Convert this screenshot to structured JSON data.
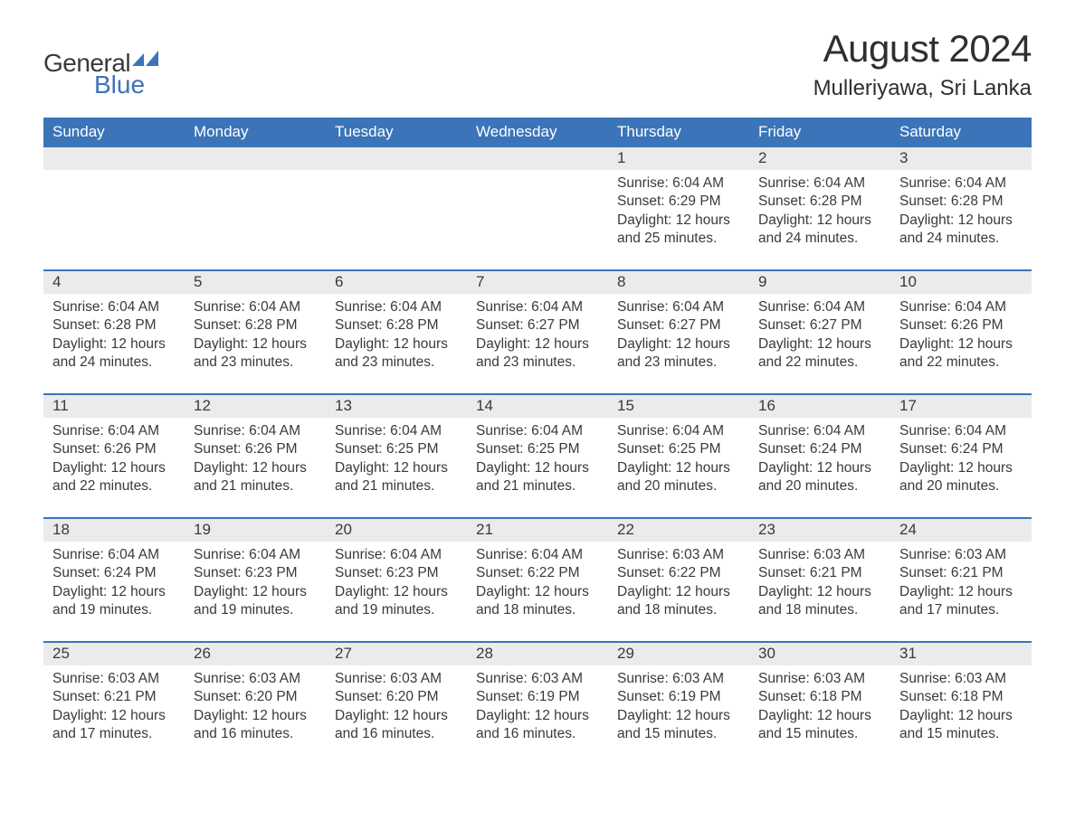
{
  "colors": {
    "header_bg": "#3b74b9",
    "header_text": "#ffffff",
    "daynum_bg": "#ebebeb",
    "body_text": "#3a3a3a",
    "week_border": "#3b74b9",
    "logo_blue": "#3b74b9",
    "page_bg": "#ffffff"
  },
  "fonts": {
    "title_size_pt": 32,
    "location_size_pt": 18,
    "header_size_pt": 13,
    "body_size_pt": 12,
    "family": "Arial"
  },
  "logo": {
    "line1": "General",
    "line2": "Blue"
  },
  "title": "August 2024",
  "location": "Mulleriyawa, Sri Lanka",
  "day_headers": [
    "Sunday",
    "Monday",
    "Tuesday",
    "Wednesday",
    "Thursday",
    "Friday",
    "Saturday"
  ],
  "weeks": [
    {
      "nums": [
        "",
        "",
        "",
        "",
        "1",
        "2",
        "3"
      ],
      "cells": [
        null,
        null,
        null,
        null,
        {
          "sunrise": "Sunrise: 6:04 AM",
          "sunset": "Sunset: 6:29 PM",
          "dl1": "Daylight: 12 hours",
          "dl2": "and 25 minutes."
        },
        {
          "sunrise": "Sunrise: 6:04 AM",
          "sunset": "Sunset: 6:28 PM",
          "dl1": "Daylight: 12 hours",
          "dl2": "and 24 minutes."
        },
        {
          "sunrise": "Sunrise: 6:04 AM",
          "sunset": "Sunset: 6:28 PM",
          "dl1": "Daylight: 12 hours",
          "dl2": "and 24 minutes."
        }
      ]
    },
    {
      "nums": [
        "4",
        "5",
        "6",
        "7",
        "8",
        "9",
        "10"
      ],
      "cells": [
        {
          "sunrise": "Sunrise: 6:04 AM",
          "sunset": "Sunset: 6:28 PM",
          "dl1": "Daylight: 12 hours",
          "dl2": "and 24 minutes."
        },
        {
          "sunrise": "Sunrise: 6:04 AM",
          "sunset": "Sunset: 6:28 PM",
          "dl1": "Daylight: 12 hours",
          "dl2": "and 23 minutes."
        },
        {
          "sunrise": "Sunrise: 6:04 AM",
          "sunset": "Sunset: 6:28 PM",
          "dl1": "Daylight: 12 hours",
          "dl2": "and 23 minutes."
        },
        {
          "sunrise": "Sunrise: 6:04 AM",
          "sunset": "Sunset: 6:27 PM",
          "dl1": "Daylight: 12 hours",
          "dl2": "and 23 minutes."
        },
        {
          "sunrise": "Sunrise: 6:04 AM",
          "sunset": "Sunset: 6:27 PM",
          "dl1": "Daylight: 12 hours",
          "dl2": "and 23 minutes."
        },
        {
          "sunrise": "Sunrise: 6:04 AM",
          "sunset": "Sunset: 6:27 PM",
          "dl1": "Daylight: 12 hours",
          "dl2": "and 22 minutes."
        },
        {
          "sunrise": "Sunrise: 6:04 AM",
          "sunset": "Sunset: 6:26 PM",
          "dl1": "Daylight: 12 hours",
          "dl2": "and 22 minutes."
        }
      ]
    },
    {
      "nums": [
        "11",
        "12",
        "13",
        "14",
        "15",
        "16",
        "17"
      ],
      "cells": [
        {
          "sunrise": "Sunrise: 6:04 AM",
          "sunset": "Sunset: 6:26 PM",
          "dl1": "Daylight: 12 hours",
          "dl2": "and 22 minutes."
        },
        {
          "sunrise": "Sunrise: 6:04 AM",
          "sunset": "Sunset: 6:26 PM",
          "dl1": "Daylight: 12 hours",
          "dl2": "and 21 minutes."
        },
        {
          "sunrise": "Sunrise: 6:04 AM",
          "sunset": "Sunset: 6:25 PM",
          "dl1": "Daylight: 12 hours",
          "dl2": "and 21 minutes."
        },
        {
          "sunrise": "Sunrise: 6:04 AM",
          "sunset": "Sunset: 6:25 PM",
          "dl1": "Daylight: 12 hours",
          "dl2": "and 21 minutes."
        },
        {
          "sunrise": "Sunrise: 6:04 AM",
          "sunset": "Sunset: 6:25 PM",
          "dl1": "Daylight: 12 hours",
          "dl2": "and 20 minutes."
        },
        {
          "sunrise": "Sunrise: 6:04 AM",
          "sunset": "Sunset: 6:24 PM",
          "dl1": "Daylight: 12 hours",
          "dl2": "and 20 minutes."
        },
        {
          "sunrise": "Sunrise: 6:04 AM",
          "sunset": "Sunset: 6:24 PM",
          "dl1": "Daylight: 12 hours",
          "dl2": "and 20 minutes."
        }
      ]
    },
    {
      "nums": [
        "18",
        "19",
        "20",
        "21",
        "22",
        "23",
        "24"
      ],
      "cells": [
        {
          "sunrise": "Sunrise: 6:04 AM",
          "sunset": "Sunset: 6:24 PM",
          "dl1": "Daylight: 12 hours",
          "dl2": "and 19 minutes."
        },
        {
          "sunrise": "Sunrise: 6:04 AM",
          "sunset": "Sunset: 6:23 PM",
          "dl1": "Daylight: 12 hours",
          "dl2": "and 19 minutes."
        },
        {
          "sunrise": "Sunrise: 6:04 AM",
          "sunset": "Sunset: 6:23 PM",
          "dl1": "Daylight: 12 hours",
          "dl2": "and 19 minutes."
        },
        {
          "sunrise": "Sunrise: 6:04 AM",
          "sunset": "Sunset: 6:22 PM",
          "dl1": "Daylight: 12 hours",
          "dl2": "and 18 minutes."
        },
        {
          "sunrise": "Sunrise: 6:03 AM",
          "sunset": "Sunset: 6:22 PM",
          "dl1": "Daylight: 12 hours",
          "dl2": "and 18 minutes."
        },
        {
          "sunrise": "Sunrise: 6:03 AM",
          "sunset": "Sunset: 6:21 PM",
          "dl1": "Daylight: 12 hours",
          "dl2": "and 18 minutes."
        },
        {
          "sunrise": "Sunrise: 6:03 AM",
          "sunset": "Sunset: 6:21 PM",
          "dl1": "Daylight: 12 hours",
          "dl2": "and 17 minutes."
        }
      ]
    },
    {
      "nums": [
        "25",
        "26",
        "27",
        "28",
        "29",
        "30",
        "31"
      ],
      "cells": [
        {
          "sunrise": "Sunrise: 6:03 AM",
          "sunset": "Sunset: 6:21 PM",
          "dl1": "Daylight: 12 hours",
          "dl2": "and 17 minutes."
        },
        {
          "sunrise": "Sunrise: 6:03 AM",
          "sunset": "Sunset: 6:20 PM",
          "dl1": "Daylight: 12 hours",
          "dl2": "and 16 minutes."
        },
        {
          "sunrise": "Sunrise: 6:03 AM",
          "sunset": "Sunset: 6:20 PM",
          "dl1": "Daylight: 12 hours",
          "dl2": "and 16 minutes."
        },
        {
          "sunrise": "Sunrise: 6:03 AM",
          "sunset": "Sunset: 6:19 PM",
          "dl1": "Daylight: 12 hours",
          "dl2": "and 16 minutes."
        },
        {
          "sunrise": "Sunrise: 6:03 AM",
          "sunset": "Sunset: 6:19 PM",
          "dl1": "Daylight: 12 hours",
          "dl2": "and 15 minutes."
        },
        {
          "sunrise": "Sunrise: 6:03 AM",
          "sunset": "Sunset: 6:18 PM",
          "dl1": "Daylight: 12 hours",
          "dl2": "and 15 minutes."
        },
        {
          "sunrise": "Sunrise: 6:03 AM",
          "sunset": "Sunset: 6:18 PM",
          "dl1": "Daylight: 12 hours",
          "dl2": "and 15 minutes."
        }
      ]
    }
  ]
}
